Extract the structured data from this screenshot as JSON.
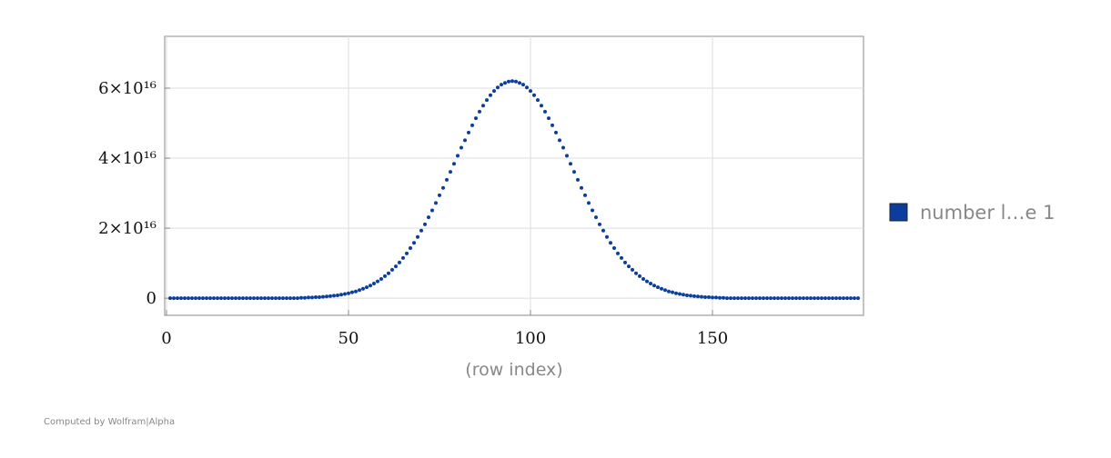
{
  "chart_data": {
    "type": "scatter",
    "x_label": "(row index)",
    "footer": "Computed by Wolfram|Alpha",
    "xlim": [
      -0.5,
      191.5
    ],
    "ylim": [
      -4900000000000000.0,
      7.48e+16
    ],
    "xticks": [
      0,
      50,
      100,
      150
    ],
    "yticks": [
      0,
      {
        "value": 2e+16,
        "label": "2×10¹⁶"
      },
      {
        "value": 4e+16,
        "label": "4×10¹⁶"
      },
      {
        "value": 6e+16,
        "label": "6×10¹⁶"
      }
    ],
    "grid": true,
    "legend": "right",
    "series": [
      {
        "name": "number l…e 1",
        "color": "#0a3d9e",
        "x": [
          1,
          2,
          3,
          4,
          5,
          6,
          7,
          8,
          9,
          10,
          11,
          12,
          13,
          14,
          15,
          16,
          17,
          18,
          19,
          20,
          21,
          22,
          23,
          24,
          25,
          26,
          27,
          28,
          29,
          30,
          31,
          32,
          33,
          34,
          35,
          36,
          37,
          38,
          39,
          40,
          41,
          42,
          43,
          44,
          45,
          46,
          47,
          48,
          49,
          50,
          51,
          52,
          53,
          54,
          55,
          56,
          57,
          58,
          59,
          60,
          61,
          62,
          63,
          64,
          65,
          66,
          67,
          68,
          69,
          70,
          71,
          72,
          73,
          74,
          75,
          76,
          77,
          78,
          79,
          80,
          81,
          82,
          83,
          84,
          85,
          86,
          87,
          88,
          89,
          90,
          91,
          92,
          93,
          94,
          95,
          96,
          97,
          98,
          99,
          100,
          101,
          102,
          103,
          104,
          105,
          106,
          107,
          108,
          109,
          110,
          111,
          112,
          113,
          114,
          115,
          116,
          117,
          118,
          119,
          120,
          121,
          122,
          123,
          124,
          125,
          126,
          127,
          128,
          129,
          130,
          131,
          132,
          133,
          134,
          135,
          136,
          137,
          138,
          139,
          140,
          141,
          142,
          143,
          144,
          145,
          146,
          147,
          148,
          149,
          150,
          151,
          152,
          153,
          154,
          155,
          156,
          157,
          158,
          159,
          160,
          161,
          162,
          163,
          164,
          165,
          166,
          167,
          168,
          169,
          170,
          171,
          172,
          173,
          174,
          175,
          176,
          177,
          178,
          179,
          180,
          181,
          182,
          183,
          184,
          185,
          186,
          187,
          188,
          189,
          190
        ],
        "values": [
          0,
          0,
          0,
          0,
          0,
          0,
          0,
          0,
          0,
          0,
          0,
          0,
          0,
          0,
          0,
          0,
          0,
          0,
          0,
          0,
          0,
          0,
          0,
          0,
          0,
          0,
          0,
          0,
          0,
          0,
          0,
          0,
          0,
          0,
          0,
          0,
          100000000000000.0,
          100000000000000.0,
          200000000000000.0,
          200000000000000.0,
          300000000000000.0,
          300000000000000.0,
          400000000000000.0,
          500000000000000.0,
          600000000000000.0,
          700000000000000.0,
          800000000000000.0,
          1000000000000000.0,
          1200000000000000.0,
          1400000000000000.0,
          1700000000000000.0,
          1900000000000000.0,
          2300000000000000.0,
          2700000000000000.0,
          3100000000000000.0,
          3600000000000000.0,
          4200000000000000.0,
          4800000000000000.0,
          5500000000000000.0,
          6300000000000000.0,
          7100000000000000.0,
          8100000000000000.0,
          9100000000000000.0,
          1.02e+16,
          1.15e+16,
          1.28e+16,
          1.43e+16,
          1.58e+16,
          1.75e+16,
          1.93e+16,
          2.11e+16,
          2.31e+16,
          2.51e+16,
          2.72e+16,
          2.94e+16,
          3.15e+16,
          3.38e+16,
          3.61e+16,
          3.84e+16,
          4.07e+16,
          4.3e+16,
          4.51e+16,
          4.73e+16,
          4.94e+16,
          5.14e+16,
          5.33e+16,
          5.5e+16,
          5.66e+16,
          5.8e+16,
          5.92e+16,
          6.02e+16,
          6.1e+16,
          6.15e+16,
          6.19e+16,
          6.2e+16,
          6.19e+16,
          6.15e+16,
          6.1e+16,
          6.02e+16,
          5.92e+16,
          5.8e+16,
          5.66e+16,
          5.5e+16,
          5.33e+16,
          5.14e+16,
          4.94e+16,
          4.73e+16,
          4.51e+16,
          4.3e+16,
          4.07e+16,
          3.84e+16,
          3.61e+16,
          3.38e+16,
          3.15e+16,
          2.94e+16,
          2.72e+16,
          2.51e+16,
          2.31e+16,
          2.11e+16,
          1.93e+16,
          1.75e+16,
          1.58e+16,
          1.43e+16,
          1.28e+16,
          1.15e+16,
          1.02e+16,
          9100000000000000.0,
          8100000000000000.0,
          7100000000000000.0,
          6300000000000000.0,
          5500000000000000.0,
          4800000000000000.0,
          4200000000000000.0,
          3600000000000000.0,
          3100000000000000.0,
          2700000000000000.0,
          2300000000000000.0,
          1900000000000000.0,
          1700000000000000.0,
          1400000000000000.0,
          1200000000000000.0,
          1000000000000000.0,
          800000000000000.0,
          700000000000000.0,
          600000000000000.0,
          500000000000000.0,
          400000000000000.0,
          300000000000000.0,
          300000000000000.0,
          200000000000000.0,
          200000000000000.0,
          100000000000000.0,
          100000000000000.0,
          0,
          0,
          0,
          0,
          0,
          0,
          0,
          0,
          0,
          0,
          0,
          0,
          0,
          0,
          0,
          0,
          0,
          0,
          0,
          0,
          0,
          0,
          0,
          0,
          0,
          0,
          0,
          0,
          0,
          0,
          0,
          0,
          0,
          0,
          0,
          0,
          0
        ]
      }
    ]
  }
}
